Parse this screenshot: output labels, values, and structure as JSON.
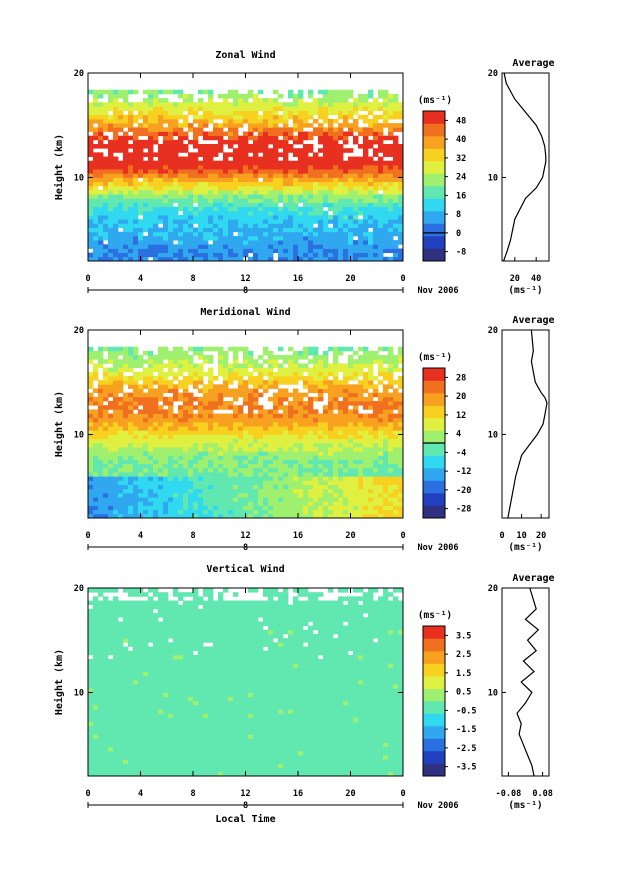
{
  "chart_data": [
    {
      "type": "heatmap",
      "title": "Zonal Wind",
      "ylabel": "Height (km)",
      "xlabel": "",
      "x_ticks": [
        "0",
        "4",
        "8",
        "12",
        "16",
        "20",
        "0"
      ],
      "x_range": [
        0,
        24
      ],
      "y_ticks": [
        "10",
        "20"
      ],
      "y_range": [
        2,
        20
      ],
      "day_label": "8",
      "date_label": "Nov 2006",
      "colorbar": {
        "unit": "(ms⁻¹)",
        "ticks": [
          "48",
          "40",
          "32",
          "24",
          "16",
          "8",
          "0",
          "-8"
        ],
        "range": [
          -12,
          52
        ],
        "zero_line": 0
      },
      "profile": {
        "x": [
          9.5,
          13,
          16,
          20,
          30,
          40,
          46,
          48,
          49,
          49,
          48,
          45,
          40,
          32,
          20,
          12,
          10
        ],
        "y": [
          2,
          3,
          4,
          6,
          8,
          9,
          10,
          11,
          11.5,
          12,
          13,
          14,
          15,
          16,
          17.5,
          19,
          20
        ]
      }
    },
    {
      "type": "heatmap",
      "title": "Meridional Wind",
      "ylabel": "Height (km)",
      "xlabel": "",
      "x_ticks": [
        "0",
        "4",
        "8",
        "12",
        "16",
        "20",
        "0"
      ],
      "x_range": [
        0,
        24
      ],
      "y_ticks": [
        "10",
        "20"
      ],
      "y_range": [
        2,
        20
      ],
      "day_label": "8",
      "date_label": "Nov 2006",
      "colorbar": {
        "unit": "(ms⁻¹)",
        "ticks": [
          "28",
          "20",
          "12",
          "4",
          "-4",
          "-12",
          "-20",
          "-28"
        ],
        "range": [
          -32,
          32
        ],
        "zero_line": 0
      },
      "profile": {
        "x": [
          3,
          4,
          5,
          7,
          10,
          14,
          18,
          21,
          22,
          23,
          22,
          20,
          17,
          16,
          15,
          16,
          15
        ],
        "y": [
          2,
          3,
          4,
          6,
          8,
          9,
          10,
          11,
          12,
          13,
          13.5,
          14,
          15,
          16,
          17,
          18,
          20
        ]
      }
    },
    {
      "type": "heatmap",
      "title": "Vertical Wind",
      "ylabel": "Height (km)",
      "xlabel": "Local Time",
      "x_ticks": [
        "0",
        "4",
        "8",
        "12",
        "16",
        "20",
        "0"
      ],
      "x_range": [
        0,
        24
      ],
      "y_ticks": [
        "10",
        "20"
      ],
      "y_range": [
        2,
        20
      ],
      "day_label": "8",
      "date_label": "Nov 2006",
      "colorbar": {
        "unit": "(ms⁻¹)",
        "ticks": [
          "3.5",
          "2.5",
          "1.5",
          "0.5",
          "-0.5",
          "-1.5",
          "-2.5",
          "-3.5"
        ],
        "range": [
          -4,
          4
        ],
        "zero_line": null
      },
      "profile": {
        "x": [
          0.04,
          0.03,
          0.01,
          -0.01,
          -0.03,
          -0.02,
          -0.04,
          0.0,
          0.03,
          -0.02,
          0.04,
          -0.01,
          0.05,
          0.01,
          0.06,
          0.0,
          0.05,
          0.02
        ],
        "y": [
          2,
          3,
          4,
          5,
          6,
          7,
          8,
          9,
          10,
          11,
          12,
          13,
          14,
          15,
          16,
          17,
          18,
          20
        ]
      }
    }
  ],
  "profile_titles": [
    "Average",
    "Average",
    "Average"
  ],
  "profile_axes": [
    {
      "ticks": [
        "20",
        "40"
      ],
      "range": [
        8,
        52
      ],
      "y_ticks": [
        "10",
        "20"
      ]
    },
    {
      "ticks": [
        "0",
        "10",
        "20"
      ],
      "range": [
        0,
        24
      ],
      "y_ticks": [
        "10",
        "20"
      ]
    },
    {
      "ticks": [
        "-0.08",
        "0.08"
      ],
      "range": [
        -0.11,
        0.11
      ],
      "y_ticks": [
        "10",
        "20"
      ]
    }
  ],
  "profile_unit": "(ms⁻¹)",
  "colormap": [
    "#303080",
    "#2040c0",
    "#2a70e0",
    "#30a8f0",
    "#30d8f0",
    "#60e8b0",
    "#a0f070",
    "#e0f040",
    "#f8d020",
    "#f8a020",
    "#f07020",
    "#e83020"
  ]
}
